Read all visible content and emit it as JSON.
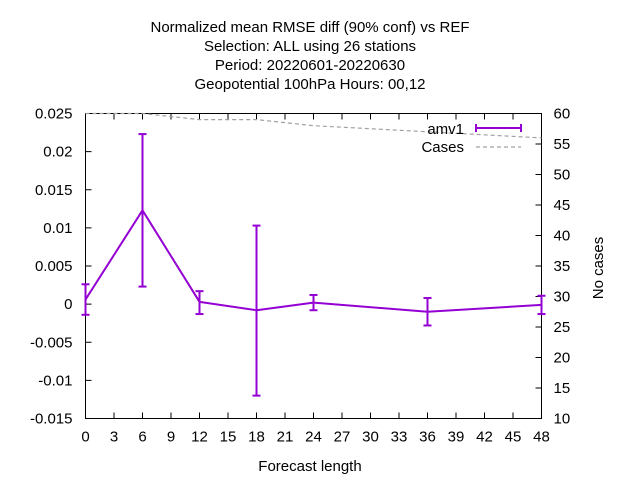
{
  "chart_data": {
    "type": "line",
    "title_lines": [
      "Normalized mean RMSE diff (90% conf) vs REF",
      "Selection: ALL using    26 stations",
      "Period: 20220601-20220630",
      "Geopotential 100hPa   Hours:  00,12"
    ],
    "xlabel": "Forecast length",
    "ylabel": "",
    "y2label": "No cases",
    "xlim": [
      0,
      48
    ],
    "ylim": [
      -0.015,
      0.025
    ],
    "y2lim": [
      10,
      60
    ],
    "xticks": [
      0,
      3,
      6,
      9,
      12,
      15,
      18,
      21,
      24,
      27,
      30,
      33,
      36,
      39,
      42,
      45,
      48
    ],
    "yticks": [
      "0.025",
      "0.02",
      "0.015",
      "0.01",
      "0.005",
      "0",
      "-0.005",
      "-0.01",
      "-0.015"
    ],
    "y2ticks": [
      60,
      55,
      50,
      45,
      40,
      35,
      30,
      25,
      20,
      15,
      10
    ],
    "grid": false,
    "legend_position": "top-right",
    "colors": {
      "amv1": "#9400d3",
      "cases": "#a0a0a0"
    },
    "series": [
      {
        "name": "amv1",
        "axis": "y",
        "x": [
          0,
          6,
          12,
          18,
          24,
          36,
          48
        ],
        "values": [
          0.0006,
          0.0123,
          0.0003,
          -0.0008,
          0.0002,
          -0.001,
          -0.0001
        ],
        "err_low": [
          -0.0014,
          0.0023,
          -0.0013,
          -0.012,
          -0.0008,
          -0.0028,
          -0.0013
        ],
        "err_high": [
          0.0026,
          0.0223,
          0.0017,
          0.0103,
          0.0012,
          0.0008,
          0.0011
        ]
      },
      {
        "name": "Cases",
        "axis": "y2",
        "x": [
          0,
          6,
          12,
          18,
          24,
          36,
          48
        ],
        "values": [
          60,
          60,
          59,
          59,
          58,
          57,
          56
        ]
      }
    ]
  }
}
